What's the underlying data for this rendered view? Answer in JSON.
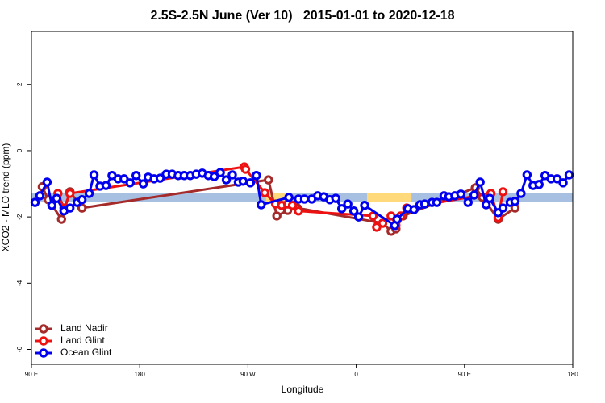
{
  "chart_data": {
    "type": "line",
    "title": "2.5S-2.5N June (Ver 10)   2015-01-01 to 2020-12-18",
    "xlabel": "Longitude",
    "ylabel": "XCO2 - MLO trend (ppm)",
    "xlim": [
      90,
      540
    ],
    "ylim": [
      -6.45,
      3.6
    ],
    "xticks": [
      {
        "value": 90,
        "label": "90 E"
      },
      180,
      {
        "value": 270,
        "label": "90 W"
      },
      {
        "value": 360,
        "label": "0"
      },
      {
        "value": 450,
        "label": "90 E"
      },
      {
        "value": 540,
        "label": "180"
      }
    ],
    "yticks": [
      -6,
      -4,
      -2,
      0,
      2
    ],
    "band": {
      "ylim": [
        -1.55,
        -1.27
      ],
      "color": "#a7bfe0"
    },
    "highlights": {
      "color": "#ffd97a",
      "xranges": [
        [
          285,
          305
        ],
        [
          369,
          406
        ]
      ]
    },
    "legend": "bottom-left",
    "series": [
      {
        "name": "Land Nadir",
        "color": "#a52a2a",
        "x": [
          99,
          104,
          115,
          122,
          132,
          287,
          294,
          303,
          311,
          382,
          389,
          393,
          399,
          459,
          465,
          478,
          492
        ],
        "values": [
          -1.09,
          -1.48,
          -2.07,
          -1.24,
          -1.73,
          -0.88,
          -1.97,
          -1.8,
          -1.73,
          -2.19,
          -2.43,
          -2.36,
          -1.97,
          -1.12,
          -1.41,
          -2.07,
          -1.73
        ]
      },
      {
        "name": "Land Glint",
        "color": "#ee1111",
        "x": [
          112,
          117,
          122,
          267,
          268,
          284,
          293,
          298,
          303,
          307,
          312,
          374,
          377,
          382,
          389,
          393,
          397,
          402,
          472,
          478,
          482
        ],
        "values": [
          -1.29,
          -1.73,
          -1.29,
          -0.49,
          -0.56,
          -1.27,
          -1.61,
          -1.65,
          -1.61,
          -1.65,
          -1.82,
          -1.97,
          -2.31,
          -2.19,
          -1.97,
          -2.26,
          -1.97,
          -1.73,
          -1.29,
          -2.02,
          -1.24
        ]
      },
      {
        "name": "Ocean Glint",
        "color": "#0000ee",
        "x": [
          93,
          97,
          103,
          107,
          111,
          117,
          122,
          128,
          132,
          138,
          142,
          147,
          152,
          157,
          162,
          167,
          172,
          177,
          183,
          187,
          192,
          197,
          202,
          207,
          212,
          217,
          222,
          227,
          232,
          237,
          242,
          247,
          252,
          257,
          262,
          266,
          272,
          277,
          281,
          304,
          312,
          317,
          323,
          328,
          333,
          338,
          343,
          348,
          353,
          358,
          362,
          367,
          392,
          394,
          403,
          408,
          413,
          417,
          423,
          427,
          433,
          437,
          442,
          447,
          453,
          458,
          463,
          468,
          471,
          478,
          482,
          488,
          492,
          497,
          502,
          507,
          512,
          517,
          522,
          527,
          532,
          537
        ],
        "values": [
          -1.56,
          -1.36,
          -0.95,
          -1.65,
          -1.44,
          -1.82,
          -1.73,
          -1.56,
          -1.48,
          -1.29,
          -0.73,
          -1.07,
          -1.05,
          -0.75,
          -0.85,
          -0.85,
          -0.97,
          -0.75,
          -1.0,
          -0.8,
          -0.85,
          -0.83,
          -0.71,
          -0.71,
          -0.75,
          -0.75,
          -0.75,
          -0.71,
          -0.68,
          -0.75,
          -0.78,
          -0.66,
          -0.88,
          -0.73,
          -0.95,
          -0.92,
          -0.97,
          -0.75,
          -1.63,
          -1.41,
          -1.46,
          -1.46,
          -1.46,
          -1.36,
          -1.39,
          -1.48,
          -1.44,
          -1.75,
          -1.61,
          -1.82,
          -2.0,
          -1.65,
          -2.26,
          -2.07,
          -1.75,
          -1.78,
          -1.63,
          -1.61,
          -1.56,
          -1.56,
          -1.36,
          -1.39,
          -1.36,
          -1.31,
          -1.56,
          -1.34,
          -0.95,
          -1.63,
          -1.44,
          -1.87,
          -1.73,
          -1.56,
          -1.53,
          -1.29,
          -0.73,
          -1.05,
          -1.02,
          -0.75,
          -0.85,
          -0.85,
          -0.97,
          -0.73
        ]
      }
    ]
  }
}
